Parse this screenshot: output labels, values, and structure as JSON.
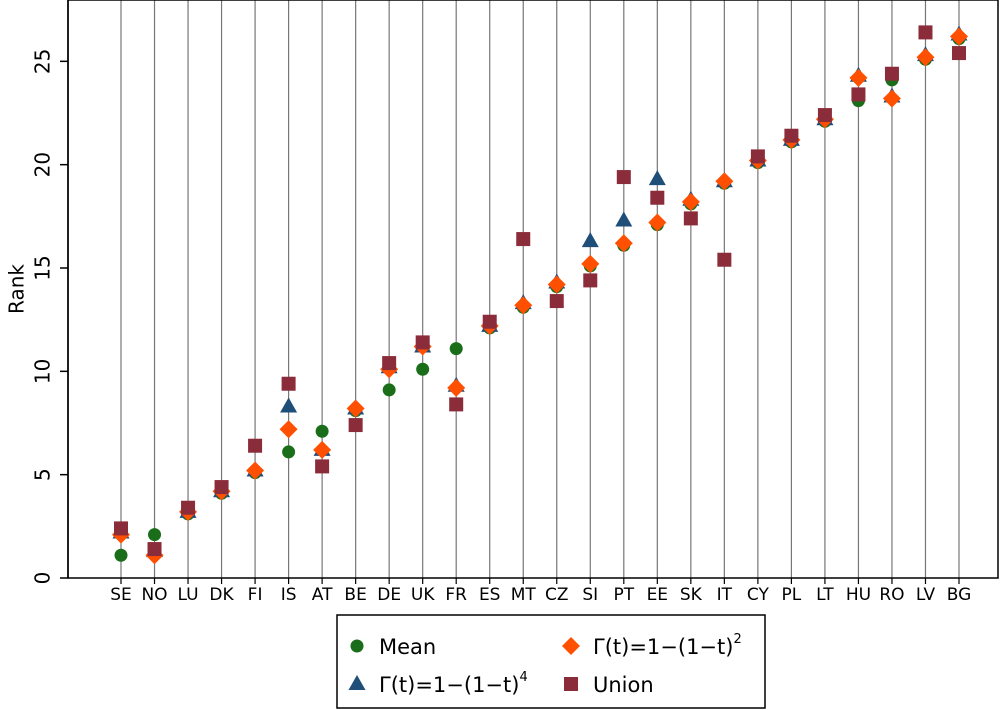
{
  "chart_data": {
    "type": "scatter",
    "title": "",
    "xlabel": "",
    "ylabel": "Rank",
    "ylim": [
      0,
      27
    ],
    "yticks": [
      0,
      5,
      10,
      15,
      20,
      25
    ],
    "grid": "vertical lines at each category",
    "legend_position": "bottom",
    "categories": [
      "SE",
      "NO",
      "LU",
      "DK",
      "FI",
      "IS",
      "AT",
      "BE",
      "DE",
      "UK",
      "FR",
      "ES",
      "MT",
      "CZ",
      "SI",
      "PT",
      "EE",
      "SK",
      "IT",
      "CY",
      "PL",
      "LT",
      "HU",
      "RO",
      "LV",
      "BG"
    ],
    "series": [
      {
        "name": "Mean",
        "marker": "circle",
        "color": "#1a6e1a",
        "values": [
          1.1,
          2.1,
          3.1,
          4.1,
          5.1,
          6.1,
          7.1,
          8.1,
          9.1,
          10.1,
          11.1,
          12.1,
          13.1,
          14.1,
          15.1,
          16.1,
          17.1,
          18.1,
          19.1,
          20.1,
          21.1,
          22.1,
          23.1,
          24.1,
          25.1,
          26.1
        ]
      },
      {
        "name_parts": {
          "base": "Γ(t)=1−(1−t)",
          "exp": "4"
        },
        "marker": "triangle",
        "color": "#1f4e79",
        "values": [
          2.2,
          1.3,
          3.2,
          4.2,
          5.2,
          8.3,
          6.2,
          8.2,
          10.2,
          11.2,
          9.3,
          12.2,
          13.3,
          14.3,
          16.3,
          17.3,
          19.3,
          18.3,
          19.2,
          20.2,
          21.2,
          22.2,
          24.3,
          23.3,
          25.3,
          26.3
        ]
      },
      {
        "name_parts": {
          "base": "Γ(t)=1−(1−t)",
          "exp": "2"
        },
        "marker": "diamond",
        "color": "#ff4f00",
        "values": [
          2.1,
          1.1,
          3.2,
          4.2,
          5.2,
          7.2,
          6.2,
          8.2,
          10.1,
          11.2,
          9.2,
          12.2,
          13.2,
          14.2,
          15.2,
          16.2,
          17.2,
          18.2,
          19.2,
          20.2,
          21.2,
          22.2,
          24.2,
          23.2,
          25.2,
          26.2
        ]
      },
      {
        "name": "Union",
        "marker": "square",
        "color": "#8b2c3a",
        "values": [
          2.4,
          1.4,
          3.4,
          4.4,
          6.4,
          9.4,
          5.4,
          7.4,
          10.4,
          11.4,
          8.4,
          12.4,
          16.4,
          13.4,
          14.4,
          19.4,
          18.4,
          17.4,
          15.4,
          20.4,
          21.4,
          22.4,
          23.4,
          24.4,
          26.4,
          25.4
        ]
      }
    ]
  }
}
